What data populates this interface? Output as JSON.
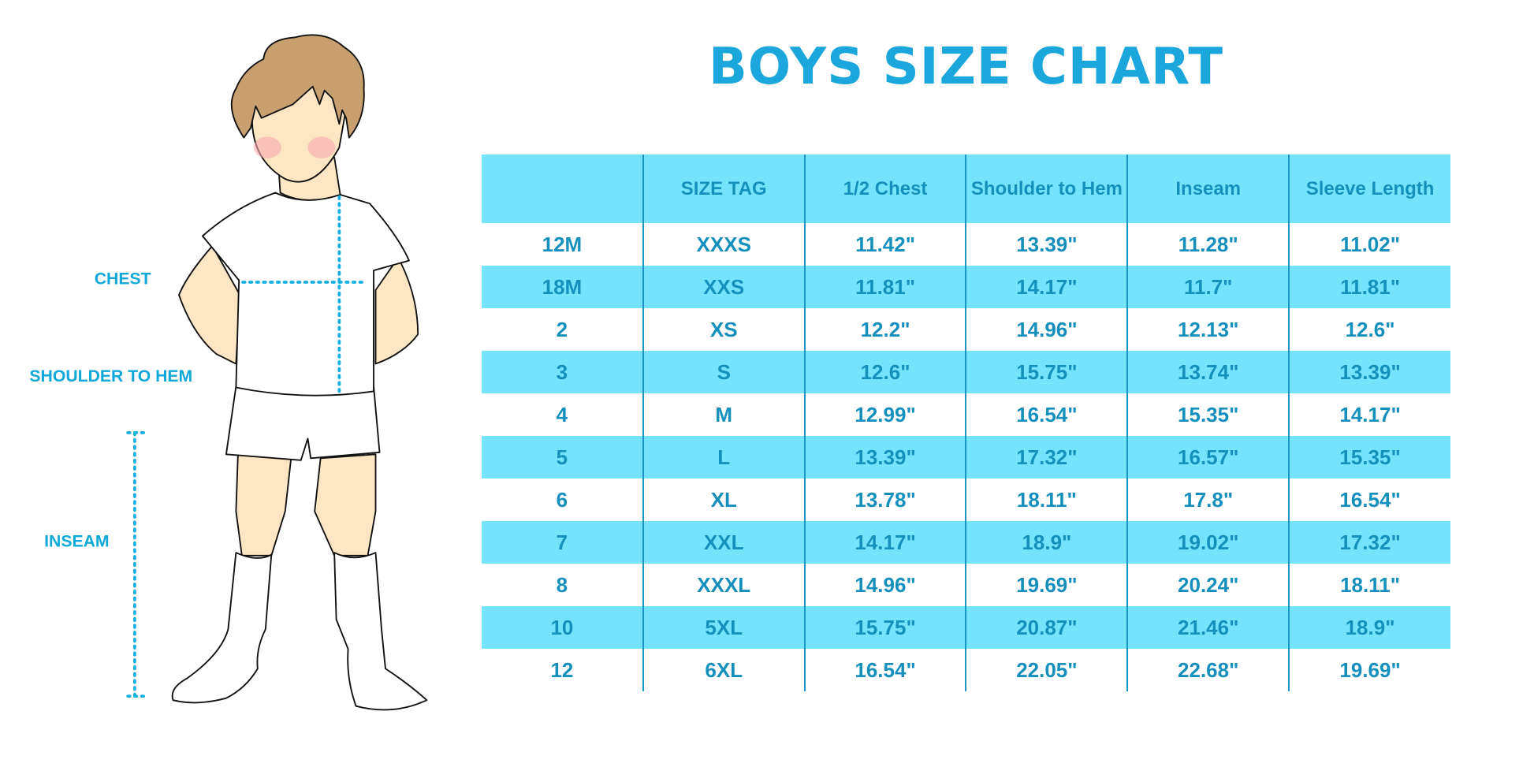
{
  "title": "BOYS SIZE CHART",
  "figure_labels": {
    "chest": "CHEST",
    "shoulder_to_hem": "SHOULDER TO HEM",
    "inseam": "INSEAM"
  },
  "colors": {
    "accent": "#1ba6dc",
    "row_highlight": "#76e3fc",
    "text": "#1590bd",
    "hair": "#c8a070",
    "skin": "#fde6c3"
  },
  "table": {
    "headers": [
      "",
      "SIZE TAG",
      "1/2 Chest",
      "Shoulder to Hem",
      "Inseam",
      "Sleeve Length"
    ],
    "rows": [
      [
        "12M",
        "XXXS",
        "11.42\"",
        "13.39\"",
        "11.28\"",
        "11.02\""
      ],
      [
        "18M",
        "XXS",
        "11.81\"",
        "14.17\"",
        "11.7\"",
        "11.81\""
      ],
      [
        "2",
        "XS",
        "12.2\"",
        "14.96\"",
        "12.13\"",
        "12.6\""
      ],
      [
        "3",
        "S",
        "12.6\"",
        "15.75\"",
        "13.74\"",
        "13.39\""
      ],
      [
        "4",
        "M",
        "12.99\"",
        "16.54\"",
        "15.35\"",
        "14.17\""
      ],
      [
        "5",
        "L",
        "13.39\"",
        "17.32\"",
        "16.57\"",
        "15.35\""
      ],
      [
        "6",
        "XL",
        "13.78\"",
        "18.11\"",
        "17.8\"",
        "16.54\""
      ],
      [
        "7",
        "XXL",
        "14.17\"",
        "18.9\"",
        "19.02\"",
        "17.32\""
      ],
      [
        "8",
        "XXXL",
        "14.96\"",
        "19.69\"",
        "20.24\"",
        "18.11\""
      ],
      [
        "10",
        "5XL",
        "15.75\"",
        "20.87\"",
        "21.46\"",
        "18.9\""
      ],
      [
        "12",
        "6XL",
        "16.54\"",
        "22.05\"",
        "22.68\"",
        "19.69\""
      ]
    ]
  }
}
